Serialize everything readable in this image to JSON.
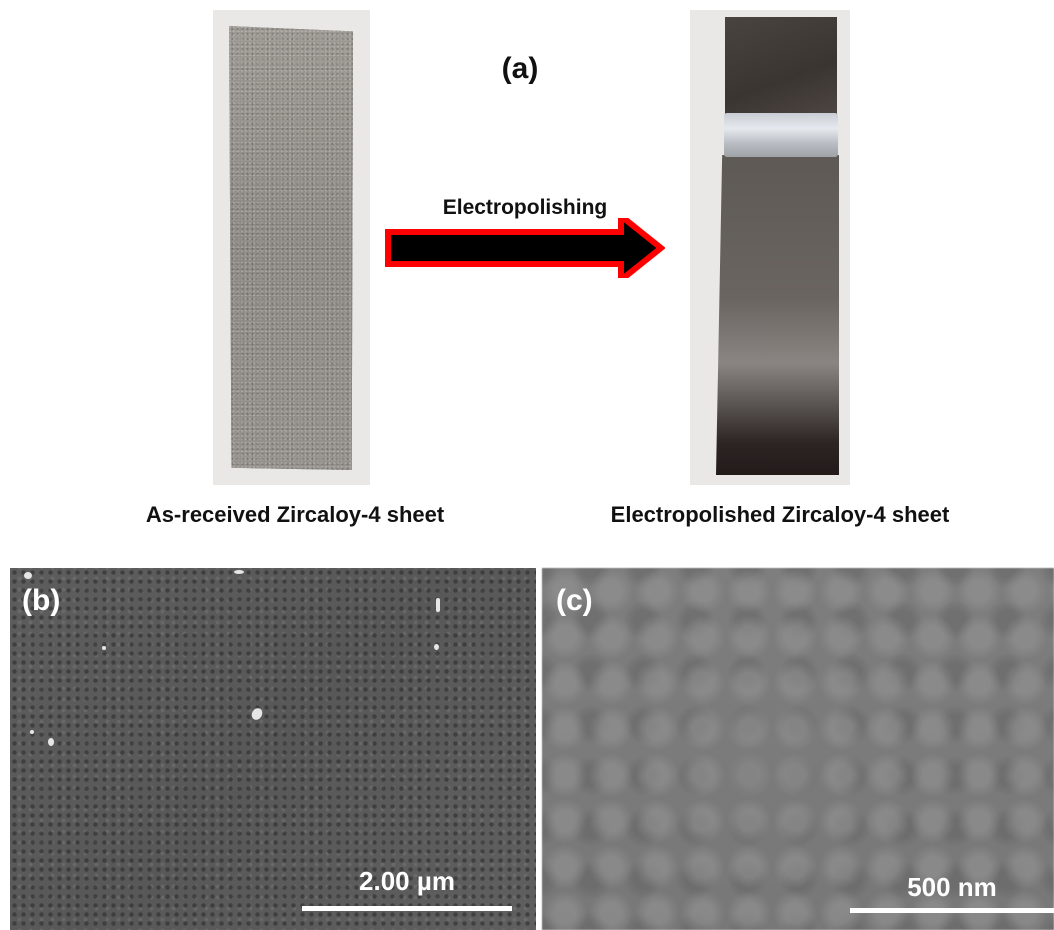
{
  "panel_a": {
    "label": "(a)",
    "arrow_label": "Electropolishing",
    "caption_left": "As-received Zircaloy-4 sheet",
    "caption_right": "Electropolished Zircaloy-4 sheet",
    "arrow_fill_color": "#000000",
    "arrow_border_color": "#ff0000"
  },
  "panel_b": {
    "label": "(b)",
    "scale_bar_label": "2.00 µm"
  },
  "panel_c": {
    "label": "(c)",
    "scale_bar_label": "500 nm"
  }
}
